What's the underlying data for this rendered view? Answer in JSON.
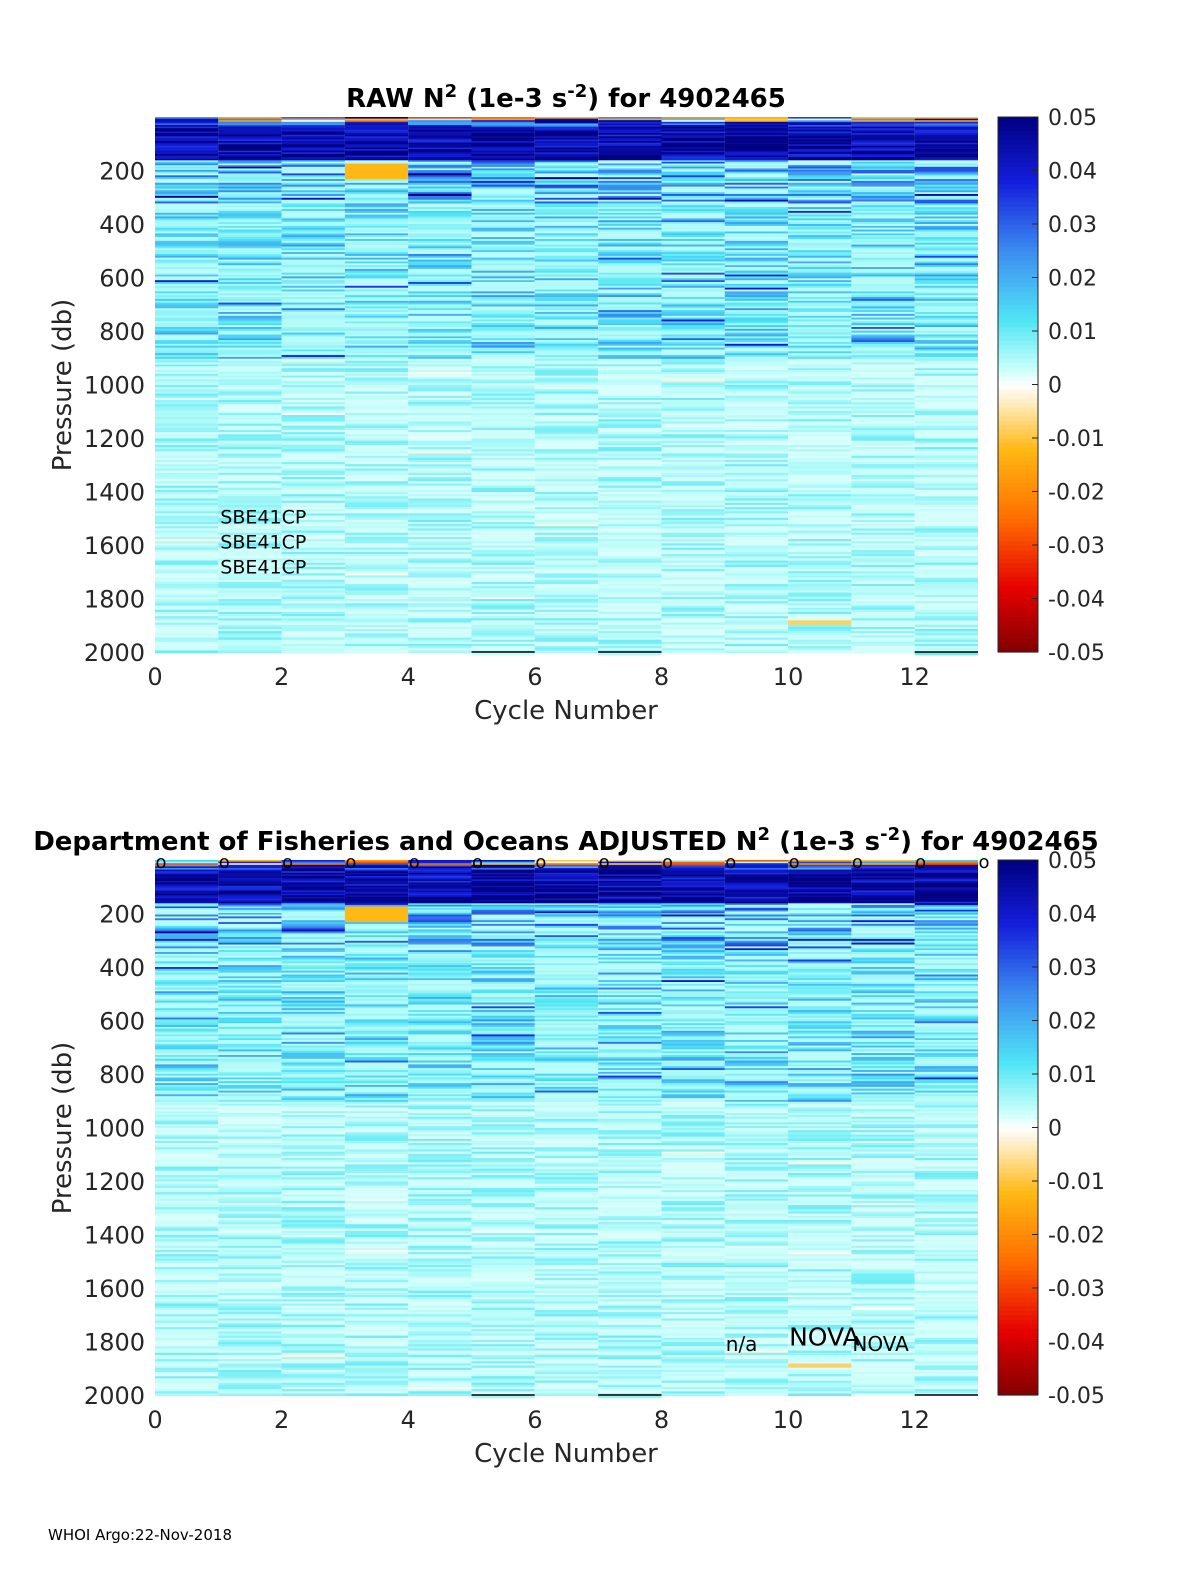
{
  "chart_data": [
    {
      "type": "heatmap",
      "title": {
        "main": "RAW N",
        "sup1": "2",
        "mid": " (1e-3 s",
        "sup2": "-2",
        "end": ") for 4902465"
      },
      "xlabel": "Cycle Number",
      "ylabel": "Pressure (db)",
      "xlim": [
        0,
        13
      ],
      "ylim": [
        2000,
        0
      ],
      "x_ticks": [
        0,
        2,
        4,
        6,
        8,
        10,
        12
      ],
      "y_ticks": [
        200,
        400,
        600,
        800,
        1000,
        1200,
        1400,
        1600,
        1800,
        2000
      ],
      "colorbar": {
        "min": -0.05,
        "max": 0.05,
        "ticks": [
          0.05,
          0.04,
          0.03,
          0.02,
          0.01,
          0,
          -0.01,
          -0.02,
          -0.03,
          -0.04,
          -0.05
        ]
      },
      "cycles": [
        0,
        1,
        2,
        3,
        4,
        5,
        6,
        7,
        8,
        9,
        10,
        11,
        12
      ],
      "profile_bottom_db": [
        2000,
        2000,
        2000,
        2000,
        2000,
        2010,
        2000,
        2010,
        2000,
        2000,
        2000,
        2000,
        2010
      ],
      "features": [
        {
          "cycle": 3,
          "p_from": 170,
          "p_to": 230,
          "value": -0.012
        },
        {
          "cycle": 10,
          "p_from": 1880,
          "p_to": 1895,
          "value": -0.008
        }
      ],
      "annotations": [
        "SBE41CP",
        "SBE41CP",
        "SBE41CP"
      ],
      "surface_markers": ""
    },
    {
      "type": "heatmap",
      "title": {
        "main": "Department of Fisheries and Oceans  ADJUSTED N",
        "sup1": "2",
        "mid": " (1e-3 s",
        "sup2": "-2",
        "end": ") for 4902465"
      },
      "xlabel": "Cycle Number",
      "ylabel": "Pressure (db)",
      "xlim": [
        0,
        13
      ],
      "ylim": [
        2000,
        0
      ],
      "x_ticks": [
        0,
        2,
        4,
        6,
        8,
        10,
        12
      ],
      "y_ticks": [
        200,
        400,
        600,
        800,
        1000,
        1200,
        1400,
        1600,
        1800,
        2000
      ],
      "colorbar": {
        "min": -0.05,
        "max": 0.05,
        "ticks": [
          0.05,
          0.04,
          0.03,
          0.02,
          0.01,
          0,
          -0.01,
          -0.02,
          -0.03,
          -0.04,
          -0.05
        ]
      },
      "cycles": [
        0,
        1,
        2,
        3,
        4,
        5,
        6,
        7,
        8,
        9,
        10,
        11,
        12
      ],
      "profile_bottom_db": [
        2000,
        2000,
        2000,
        2000,
        2000,
        2010,
        2000,
        2010,
        2000,
        2000,
        2000,
        2000,
        2010
      ],
      "features": [
        {
          "cycle": 3,
          "p_from": 170,
          "p_to": 230,
          "value": -0.012
        },
        {
          "cycle": 10,
          "p_from": 1880,
          "p_to": 1895,
          "value": -0.008
        }
      ],
      "annotations": [
        {
          "cycle": 9,
          "text": "n/a"
        },
        {
          "cycle": 10,
          "text": "NOVA"
        },
        {
          "cycle": 11,
          "text": "NOVA"
        }
      ],
      "surface_markers": "o",
      "marker_cycles": [
        0,
        1,
        2,
        3,
        4,
        5,
        6,
        7,
        8,
        9,
        10,
        11,
        12,
        13
      ]
    }
  ],
  "footer": "WHOI Argo:22-Nov-2018"
}
